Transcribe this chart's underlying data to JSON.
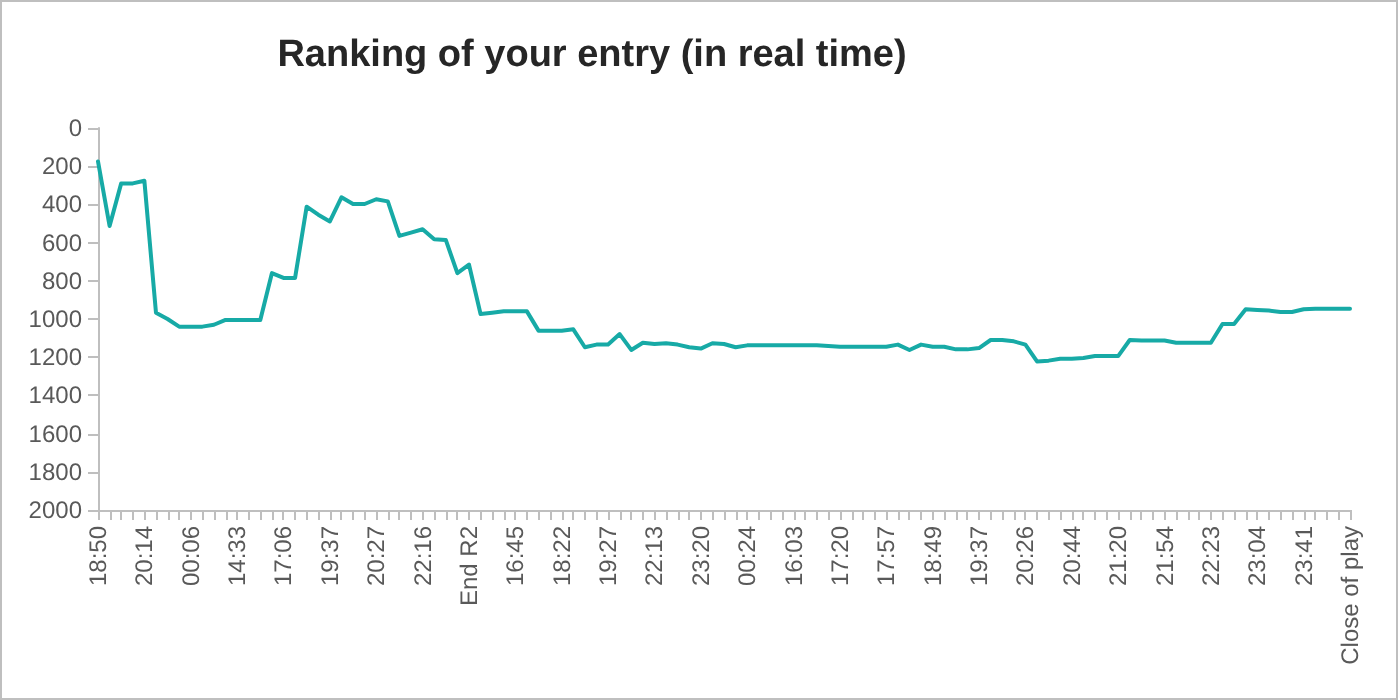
{
  "chart_data": {
    "type": "line",
    "title": "Ranking of your entry (in real time)",
    "categories": [
      "18:50",
      null,
      null,
      null,
      "20:14",
      null,
      null,
      null,
      "00:06",
      null,
      null,
      null,
      "14:33",
      null,
      null,
      null,
      "17:06",
      null,
      null,
      null,
      "19:37",
      null,
      null,
      null,
      "20:27",
      null,
      null,
      null,
      "22:16",
      null,
      null,
      null,
      "End R2",
      null,
      null,
      null,
      "16:45",
      null,
      null,
      null,
      "18:22",
      null,
      null,
      null,
      "19:27",
      null,
      null,
      null,
      "22:13",
      null,
      null,
      null,
      "23:20",
      null,
      null,
      null,
      "00:24",
      null,
      null,
      null,
      "16:03",
      null,
      null,
      null,
      "17:20",
      null,
      null,
      null,
      "17:57",
      null,
      null,
      null,
      "18:49",
      null,
      null,
      null,
      "19:37",
      null,
      null,
      null,
      "20:26",
      null,
      null,
      null,
      "20:44",
      null,
      null,
      null,
      "21:20",
      null,
      null,
      null,
      "21:54",
      null,
      null,
      null,
      "22:23",
      null,
      null,
      null,
      "23:04",
      null,
      null,
      null,
      "23:41",
      null,
      null,
      null,
      "Close of play"
    ],
    "values": [
      175,
      513,
      290,
      290,
      276,
      967,
      1000,
      1040,
      1040,
      1040,
      1030,
      1005,
      1005,
      1005,
      1005,
      760,
      785,
      785,
      412,
      454,
      489,
      363,
      398,
      398,
      373,
      384,
      565,
      548,
      530,
      583,
      586,
      760,
      715,
      974,
      967,
      960,
      960,
      960,
      1061,
      1061,
      1061,
      1054,
      1148,
      1134,
      1134,
      1079,
      1162,
      1124,
      1131,
      1127,
      1134,
      1148,
      1155,
      1127,
      1131,
      1148,
      1138,
      1138,
      1138,
      1138,
      1138,
      1138,
      1138,
      1141,
      1145,
      1145,
      1145,
      1145,
      1145,
      1134,
      1162,
      1134,
      1145,
      1145,
      1159,
      1159,
      1152,
      1110,
      1110,
      1117,
      1134,
      1222,
      1218,
      1208,
      1208,
      1204,
      1194,
      1194,
      1194,
      1110,
      1113,
      1113,
      1113,
      1124,
      1124,
      1124,
      1124,
      1026,
      1026,
      949,
      953,
      956,
      963,
      963,
      949,
      946,
      946,
      946,
      946
    ],
    "color": "#17aaa6",
    "ylim": [
      2000,
      0
    ],
    "yticks": [
      0,
      200,
      400,
      600,
      800,
      1000,
      1200,
      1400,
      1600,
      1800,
      2000
    ],
    "marker": "none"
  }
}
